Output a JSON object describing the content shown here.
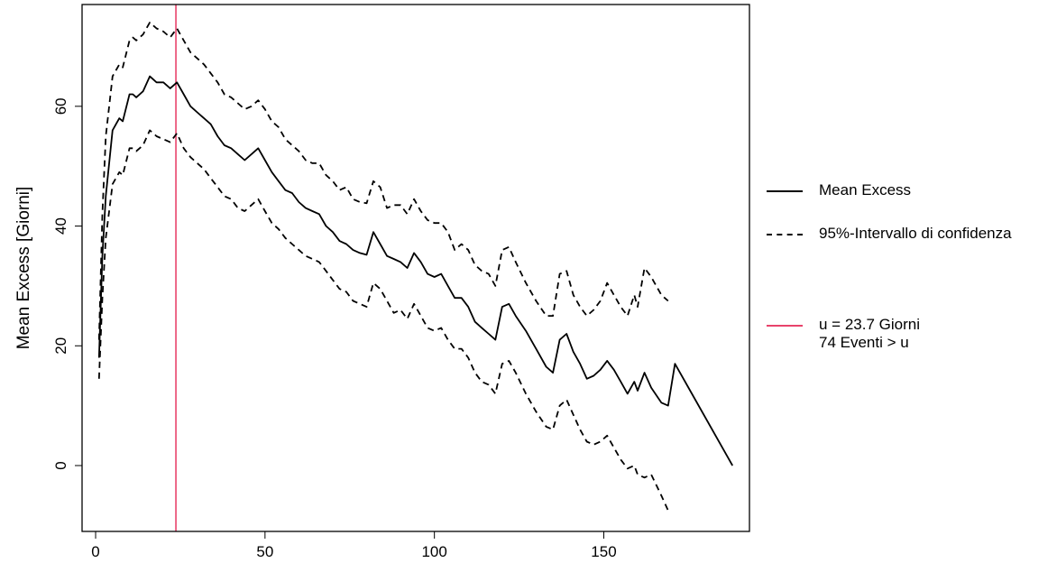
{
  "chart_data": {
    "type": "line",
    "title": "",
    "xlabel": "",
    "ylabel": "Mean Excess [Giorni]",
    "xlim": [
      -4,
      193
    ],
    "ylim": [
      -11,
      77
    ],
    "xticks": [
      0,
      50,
      100,
      150
    ],
    "yticks": [
      0,
      20,
      40,
      60
    ],
    "grid": false,
    "legend_position": "right",
    "threshold": {
      "x": 23.7,
      "color": "#e8436b"
    },
    "series": [
      {
        "name": "Mean Excess",
        "style": "solid",
        "color": "#000000",
        "x": [
          1,
          2,
          3,
          5,
          7,
          8,
          10,
          11,
          12,
          14,
          16,
          18,
          20,
          22,
          24,
          26,
          28,
          30,
          32,
          34,
          36,
          38,
          40,
          42,
          44,
          46,
          48,
          50,
          52,
          54,
          56,
          58,
          60,
          62,
          64,
          66,
          68,
          70,
          72,
          74,
          76,
          78,
          80,
          82,
          84,
          86,
          88,
          90,
          92,
          94,
          96,
          98,
          100,
          102,
          104,
          106,
          108,
          110,
          112,
          114,
          116,
          118,
          120,
          122,
          124,
          127,
          130,
          133,
          135,
          137,
          139,
          141,
          143,
          145,
          147,
          149,
          151,
          153,
          155,
          157,
          159,
          160,
          162,
          164,
          167,
          169,
          171,
          188
        ],
        "y": [
          18,
          35,
          45,
          56,
          58,
          57.5,
          62,
          62,
          61.5,
          62.5,
          65,
          64,
          64,
          63,
          64,
          62,
          60,
          59,
          58,
          57,
          55,
          53.5,
          53,
          52,
          51,
          52,
          53,
          51,
          49,
          47.5,
          46,
          45.5,
          44,
          43,
          42.5,
          42,
          40,
          39,
          37.5,
          37,
          36,
          35.5,
          35.2,
          39,
          37,
          35,
          34.5,
          34,
          33,
          35.5,
          34,
          32,
          31.5,
          32,
          30,
          28,
          28,
          26.5,
          24,
          23,
          22,
          21,
          26.5,
          27,
          25,
          22.5,
          19.5,
          16.5,
          15.5,
          21,
          22,
          19,
          17,
          14.5,
          15,
          16,
          17.5,
          16,
          14,
          12,
          14,
          12.5,
          15.5,
          13,
          10.5,
          10,
          17,
          0
        ]
      },
      {
        "name": "95%-Intervallo di confidenza",
        "style": "dashed",
        "color": "#000000",
        "x": [
          1,
          2,
          3,
          5,
          7,
          8,
          10,
          11,
          12,
          14,
          16,
          18,
          20,
          22,
          24,
          26,
          28,
          30,
          32,
          34,
          36,
          38,
          40,
          42,
          44,
          46,
          48,
          50,
          52,
          54,
          56,
          58,
          60,
          62,
          64,
          66,
          68,
          70,
          72,
          74,
          76,
          78,
          80,
          82,
          84,
          86,
          88,
          90,
          92,
          94,
          96,
          98,
          100,
          102,
          104,
          106,
          108,
          110,
          112,
          114,
          116,
          118,
          120,
          122,
          124,
          127,
          130,
          133,
          135,
          137,
          139,
          141,
          143,
          145,
          147,
          149,
          151,
          153,
          155,
          157,
          159,
          160,
          162,
          164,
          167,
          169
        ],
        "y": [
          21,
          42,
          55,
          65,
          67,
          66.5,
          71,
          71.5,
          71,
          72,
          74,
          73,
          72.5,
          71.5,
          73,
          71,
          69,
          68,
          67,
          65.5,
          64,
          62,
          61.5,
          60.5,
          59.5,
          60,
          61,
          59.5,
          57.5,
          56.5,
          54.5,
          53.5,
          52.5,
          51,
          50.5,
          50.5,
          48.5,
          47.5,
          46,
          46.5,
          44.5,
          44,
          43.8,
          47.5,
          46.5,
          43,
          43.5,
          43.5,
          42,
          44.5,
          42.5,
          41,
          40.5,
          40.5,
          39,
          36,
          37,
          36,
          33.5,
          32.5,
          32,
          30,
          36,
          36.5,
          34,
          30.5,
          27.5,
          25,
          25,
          32,
          32.5,
          28.5,
          26.5,
          25,
          26,
          27.5,
          30.5,
          28.5,
          26.5,
          25,
          28.5,
          26.5,
          33,
          31.5,
          28.5,
          27.5
        ]
      },
      {
        "name": "",
        "style": "dashed",
        "color": "#000000",
        "x": [
          1,
          2,
          3,
          5,
          7,
          8,
          10,
          11,
          12,
          14,
          16,
          18,
          20,
          22,
          24,
          26,
          28,
          30,
          32,
          34,
          36,
          38,
          40,
          42,
          44,
          46,
          48,
          50,
          52,
          54,
          56,
          58,
          60,
          62,
          64,
          66,
          68,
          70,
          72,
          74,
          76,
          78,
          80,
          82,
          84,
          86,
          88,
          90,
          92,
          94,
          96,
          98,
          100,
          102,
          104,
          106,
          108,
          110,
          112,
          114,
          116,
          118,
          120,
          122,
          124,
          127,
          130,
          133,
          135,
          137,
          139,
          141,
          143,
          145,
          147,
          149,
          151,
          153,
          155,
          157,
          159,
          160,
          162,
          164,
          167,
          169
        ],
        "y": [
          14.5,
          28,
          38,
          47,
          49,
          48.5,
          53,
          53,
          52.5,
          53.5,
          56,
          55,
          54.5,
          54,
          55.5,
          53,
          51.5,
          50.5,
          49.5,
          48,
          46.5,
          45,
          44.5,
          43,
          42.5,
          43.5,
          44.5,
          42.5,
          40.5,
          39.5,
          38,
          37,
          36,
          35,
          34.5,
          34,
          32.5,
          31,
          29.5,
          29,
          27.5,
          27,
          26.5,
          30.5,
          29.5,
          27.5,
          25.5,
          26,
          24.5,
          27,
          25,
          23,
          22.5,
          23,
          21,
          19.5,
          19.5,
          18,
          15.5,
          14,
          13.5,
          12,
          17,
          17.5,
          15.5,
          12,
          9,
          6.5,
          6,
          10,
          11,
          8.5,
          6,
          4,
          3.5,
          4,
          5,
          3,
          1,
          -0.5,
          0,
          -1.5,
          -2,
          -1.5,
          -5,
          -7.5
        ]
      }
    ]
  },
  "legend": {
    "mean_excess_label": "Mean Excess",
    "ci_label": "95%-Intervallo di confidenza",
    "threshold_line1": "u =  23.7 Giorni",
    "threshold_line2": "74 Eventi > u"
  }
}
